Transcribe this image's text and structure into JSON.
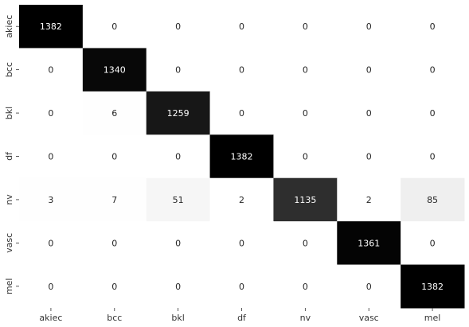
{
  "chart_data": {
    "type": "heatmap",
    "title": "",
    "xlabel": "",
    "ylabel": "",
    "x_categories": [
      "akiec",
      "bcc",
      "bkl",
      "df",
      "nv",
      "vasc",
      "mel"
    ],
    "y_categories": [
      "akiec",
      "bcc",
      "bkl",
      "df",
      "nv",
      "vasc",
      "mel"
    ],
    "values": [
      [
        1382,
        0,
        0,
        0,
        0,
        0,
        0
      ],
      [
        0,
        1340,
        0,
        0,
        0,
        0,
        0
      ],
      [
        0,
        6,
        1259,
        0,
        0,
        0,
        0
      ],
      [
        0,
        0,
        0,
        1382,
        0,
        0,
        0
      ],
      [
        3,
        7,
        51,
        2,
        1135,
        2,
        85
      ],
      [
        0,
        0,
        0,
        0,
        0,
        1361,
        0
      ],
      [
        0,
        0,
        0,
        0,
        0,
        0,
        1382
      ]
    ],
    "color_scale": {
      "low": "#ffffff",
      "high": "#000000",
      "min": 0,
      "max": 1382
    },
    "colorbar": false,
    "grid": false
  }
}
